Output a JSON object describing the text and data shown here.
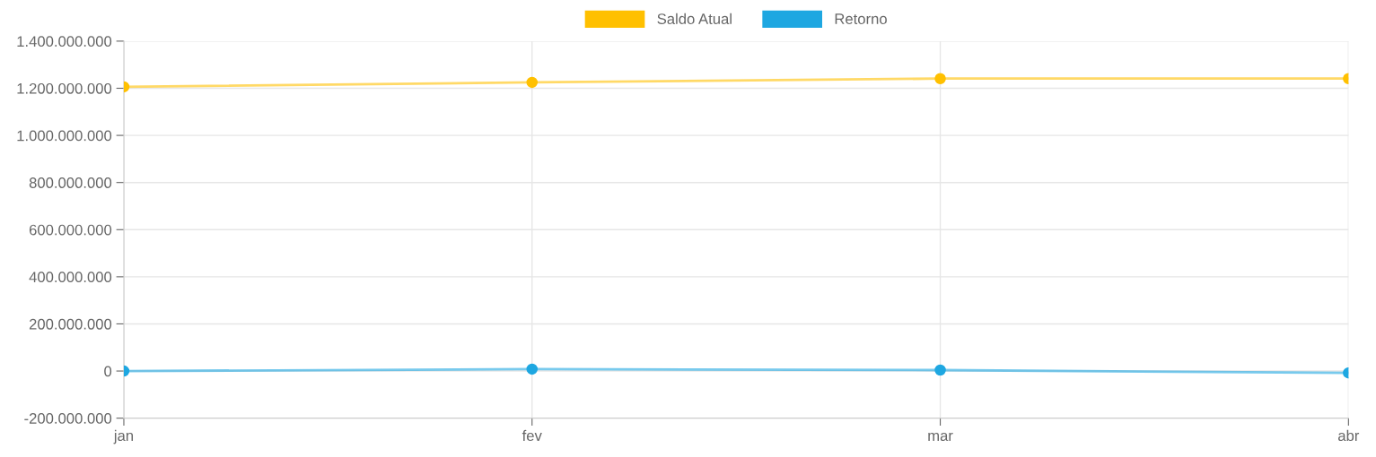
{
  "chart_data": {
    "type": "line",
    "categories": [
      "jan",
      "fev",
      "mar",
      "abr"
    ],
    "series": [
      {
        "name": "Saldo Atual",
        "color": "#ffc000",
        "values": [
          1206000000,
          1225000000,
          1241000000,
          1241000000
        ]
      },
      {
        "name": "Retorno",
        "color": "#1ea7e1",
        "values": [
          0,
          8000000,
          4000000,
          -8000000
        ]
      }
    ],
    "ylim": [
      -200000000,
      1400000000
    ],
    "yticks": [
      {
        "value": -200000000,
        "label": "-200.000.000"
      },
      0,
      {
        "value": 200000000,
        "label": "200.000.000"
      },
      {
        "value": 400000000,
        "label": "400.000.000"
      },
      {
        "value": 600000000,
        "label": "600.000.000"
      },
      {
        "value": 800000000,
        "label": "800.000.000"
      },
      {
        "value": 1000000000,
        "label": "1.000.000.000"
      },
      {
        "value": 1200000000,
        "label": "1.200.000.000"
      },
      {
        "value": 1400000000,
        "label": "1.400.000.000"
      }
    ],
    "grid": true,
    "legend": "top",
    "marker": "circle",
    "line_style": "solid"
  }
}
